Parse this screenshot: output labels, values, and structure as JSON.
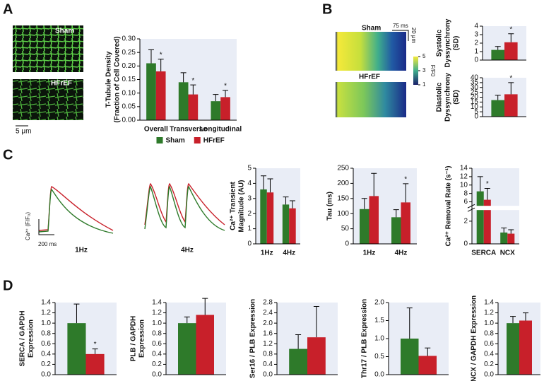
{
  "figure": {
    "panels": [
      "A",
      "B",
      "C",
      "D"
    ],
    "a_images": [
      "Sham",
      "HFrEF"
    ],
    "a_scale": "5 μm",
    "b_images": [
      "Sham",
      "HFrEF"
    ],
    "b_scale_time": "75 ms",
    "b_scale_space": "20 μm",
    "b_colorbar": {
      "label": "F/F0",
      "lim": [
        1,
        5
      ],
      "ticks": [
        5,
        3,
        1
      ]
    },
    "c_traces": [
      "1Hz",
      "4Hz"
    ],
    "c_scale_y": "Ca²⁺ (F/F₀)",
    "c_scale_x": "200 ms"
  },
  "chart_data": [
    {
      "type": "bar",
      "ylabel": [
        "T-Tubule Density",
        "(Fraction of Cell Covered)"
      ],
      "categories": [
        "Overall",
        "Transverse",
        "Longitudinal"
      ],
      "series": [
        {
          "name": "Sham",
          "color": "#2e7a2a",
          "values": [
            0.21,
            0.14,
            0.07
          ],
          "errors": [
            0.05,
            0.035,
            0.025
          ]
        },
        {
          "name": "HFrEF",
          "color": "#c8202a",
          "values": [
            0.18,
            0.095,
            0.085
          ],
          "errors": [
            0.045,
            0.035,
            0.025
          ],
          "markers": [
            "*",
            "*",
            "*"
          ]
        }
      ],
      "ylim": [
        0,
        0.3
      ],
      "yticks": [
        {
          "value": 0,
          "label": "0.00"
        },
        0.05,
        {
          "value": 0.1,
          "label": "0.10"
        },
        0.15,
        {
          "value": 0.2,
          "label": "0.20"
        },
        0.25,
        {
          "value": 0.3,
          "label": "0.30"
        }
      ],
      "legend": "bottom"
    },
    {
      "type": "bar",
      "ylabel": [
        "Systolic",
        "Dyssynchrony",
        "(SD)"
      ],
      "categories": [
        null
      ],
      "series": [
        {
          "name": "Sham",
          "color": "#2e7a2a",
          "values": [
            1.2
          ],
          "errors": [
            0.4
          ]
        },
        {
          "name": "HFrEF",
          "color": "#c8202a",
          "values": [
            2.1
          ],
          "errors": [
            1.0
          ],
          "markers": [
            "*"
          ]
        }
      ],
      "ylim": [
        0,
        4
      ],
      "yticks": [
        0,
        1,
        2,
        3,
        4
      ]
    },
    {
      "type": "bar",
      "ylabel": [
        "Diastolic",
        "Dyssynchrony",
        "(SD)"
      ],
      "categories": [
        null
      ],
      "series": [
        {
          "name": "Sham",
          "color": "#2e7a2a",
          "values": [
            17
          ],
          "errors": [
            5
          ]
        },
        {
          "name": "HFrEF",
          "color": "#c8202a",
          "values": [
            23
          ],
          "errors": [
            12
          ],
          "markers": [
            "*"
          ]
        }
      ],
      "ylim": [
        0,
        40
      ],
      "yticks": [
        0,
        5,
        10,
        15,
        20,
        25,
        30,
        35,
        40
      ]
    },
    {
      "type": "bar",
      "ylabel": [
        "Ca²⁺ Transient",
        "Magnitude (AU)"
      ],
      "categories": [
        "1Hz",
        "4Hz"
      ],
      "series": [
        {
          "name": "Sham",
          "color": "#2e7a2a",
          "values": [
            3.6,
            2.6
          ],
          "errors": [
            0.9,
            0.5
          ]
        },
        {
          "name": "HFrEF",
          "color": "#c8202a",
          "values": [
            3.4,
            2.35
          ],
          "errors": [
            0.9,
            0.5
          ]
        }
      ],
      "ylim": [
        0,
        5
      ],
      "yticks": [
        0,
        1,
        2,
        3,
        4,
        5
      ]
    },
    {
      "type": "bar",
      "ylabel": [
        "Tau (ms)"
      ],
      "categories": [
        "1Hz",
        "4Hz"
      ],
      "series": [
        {
          "name": "Sham",
          "color": "#2e7a2a",
          "values": [
            115,
            88
          ],
          "errors": [
            35,
            25
          ]
        },
        {
          "name": "HFrEF",
          "color": "#c8202a",
          "values": [
            158,
            137
          ],
          "errors": [
            75,
            62
          ],
          "markers": [
            null,
            "*"
          ]
        }
      ],
      "ylim": [
        0,
        250
      ],
      "yticks": [
        0,
        50,
        100,
        150,
        200,
        250
      ]
    },
    {
      "type": "bar",
      "ylabel": [
        "Ca²⁺ Removal Rate (s⁻¹)"
      ],
      "categories": [
        "SERCA",
        "NCX"
      ],
      "series": [
        {
          "name": "Sham",
          "color": "#2e7a2a",
          "values": [
            8.5,
            1.0
          ],
          "errors": [
            3.5,
            0.4
          ]
        },
        {
          "name": "HFrEF",
          "color": "#c8202a",
          "values": [
            6.5,
            0.9
          ],
          "errors": [
            2.7,
            0.35
          ],
          "markers": [
            "*",
            null
          ]
        }
      ],
      "ylim": [
        0,
        14
      ],
      "ybreak": [
        3,
        5
      ],
      "yticks": [
        0,
        2,
        6,
        8,
        10,
        12,
        14
      ]
    },
    {
      "type": "bar",
      "ylabel": [
        "SERCA / GAPDH",
        "Expression"
      ],
      "categories": [
        null
      ],
      "series": [
        {
          "name": "Sham",
          "color": "#2e7a2a",
          "values": [
            1.0
          ],
          "errors": [
            0.37
          ]
        },
        {
          "name": "HFrEF",
          "color": "#c8202a",
          "values": [
            0.4
          ],
          "errors": [
            0.1
          ],
          "markers": [
            "*"
          ]
        }
      ],
      "ylim": [
        0,
        1.4
      ],
      "yticks": [
        {
          "value": 0,
          "label": "0.0"
        },
        0.2,
        0.4,
        0.6,
        0.8,
        {
          "value": 1,
          "label": "1.0"
        },
        1.2,
        1.4
      ]
    },
    {
      "type": "bar",
      "ylabel": [
        "PLB / GAPDH",
        "Expression"
      ],
      "categories": [
        null
      ],
      "series": [
        {
          "name": "Sham",
          "color": "#2e7a2a",
          "values": [
            1.0
          ],
          "errors": [
            0.12
          ]
        },
        {
          "name": "HFrEF",
          "color": "#c8202a",
          "values": [
            1.16
          ],
          "errors": [
            0.32
          ]
        }
      ],
      "ylim": [
        0,
        1.4
      ],
      "yticks": [
        {
          "value": 0,
          "label": "0.0"
        },
        0.2,
        0.4,
        0.6,
        0.8,
        {
          "value": 1,
          "label": "1.0"
        },
        1.2,
        1.4
      ]
    },
    {
      "type": "bar",
      "ylabel": [
        "Ser16 / PLB Expression"
      ],
      "categories": [
        null
      ],
      "series": [
        {
          "name": "Sham",
          "color": "#2e7a2a",
          "values": [
            1.0
          ],
          "errors": [
            0.55
          ]
        },
        {
          "name": "HFrEF",
          "color": "#c8202a",
          "values": [
            1.45
          ],
          "errors": [
            1.2
          ]
        }
      ],
      "ylim": [
        0,
        2.8
      ],
      "yticks": [
        {
          "value": 0,
          "label": "0.0"
        },
        0.4,
        0.8,
        1.2,
        1.6,
        {
          "value": 2,
          "label": "2.0"
        },
        2.4,
        2.8
      ]
    },
    {
      "type": "bar",
      "ylabel": [
        "Thr17 / PLB Expression"
      ],
      "categories": [
        null
      ],
      "series": [
        {
          "name": "Sham",
          "color": "#2e7a2a",
          "values": [
            1.0
          ],
          "errors": [
            0.85
          ]
        },
        {
          "name": "HFrEF",
          "color": "#c8202a",
          "values": [
            0.52
          ],
          "errors": [
            0.22
          ]
        }
      ],
      "ylim": [
        0,
        2
      ],
      "yticks": [
        {
          "value": 0,
          "label": "0.0"
        },
        0.5,
        {
          "value": 1,
          "label": "1.0"
        },
        1.5,
        {
          "value": 2,
          "label": "2.0"
        }
      ]
    },
    {
      "type": "bar",
      "ylabel": [
        "NCX / GAPDH Expression"
      ],
      "categories": [
        null
      ],
      "series": [
        {
          "name": "Sham",
          "color": "#2e7a2a",
          "values": [
            1.0
          ],
          "errors": [
            0.13
          ]
        },
        {
          "name": "HFrEF",
          "color": "#c8202a",
          "values": [
            1.05
          ],
          "errors": [
            0.15
          ]
        }
      ],
      "ylim": [
        0,
        1.4
      ],
      "yticks": [
        {
          "value": 0,
          "label": "0.0"
        },
        0.2,
        0.4,
        0.6,
        0.8,
        {
          "value": 1,
          "label": "1.0"
        },
        1.2,
        1.4
      ]
    }
  ]
}
